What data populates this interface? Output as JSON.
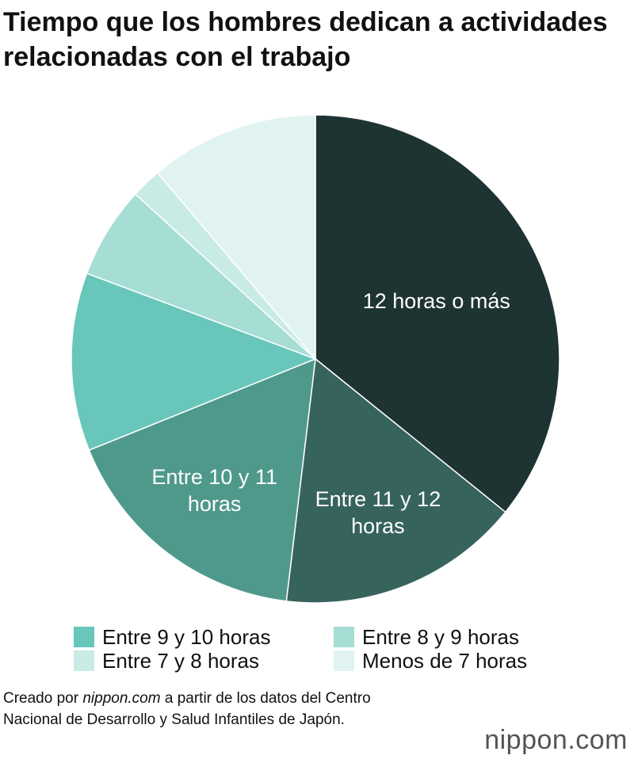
{
  "chart_data": {
    "type": "pie",
    "title": "Tiempo que los hombres dedican a actividades relacionadas con el trabajo",
    "categories": [
      "12 horas o más",
      "Entre 11 y 12 horas",
      "Entre 10 y 11 horas",
      "Entre 9 y 10 horas",
      "Entre 8 y 9 horas",
      "Entre 7 y 8 horas",
      "Menos de 7 horas"
    ],
    "values": [
      35.8,
      16.1,
      17.0,
      11.8,
      6.1,
      2.0,
      11.2
    ],
    "colors": [
      "#1e3432",
      "#37635d",
      "#4f998c",
      "#68c6ba",
      "#a6ddd5",
      "#c8ebe5",
      "#e0f3f1"
    ],
    "source": [
      "Creado por ",
      "nippon.com",
      " a partir de los datos del Centro Nacional de Desarrollo y Salud Infantiles de Japón."
    ],
    "logo": "nippon.com"
  }
}
